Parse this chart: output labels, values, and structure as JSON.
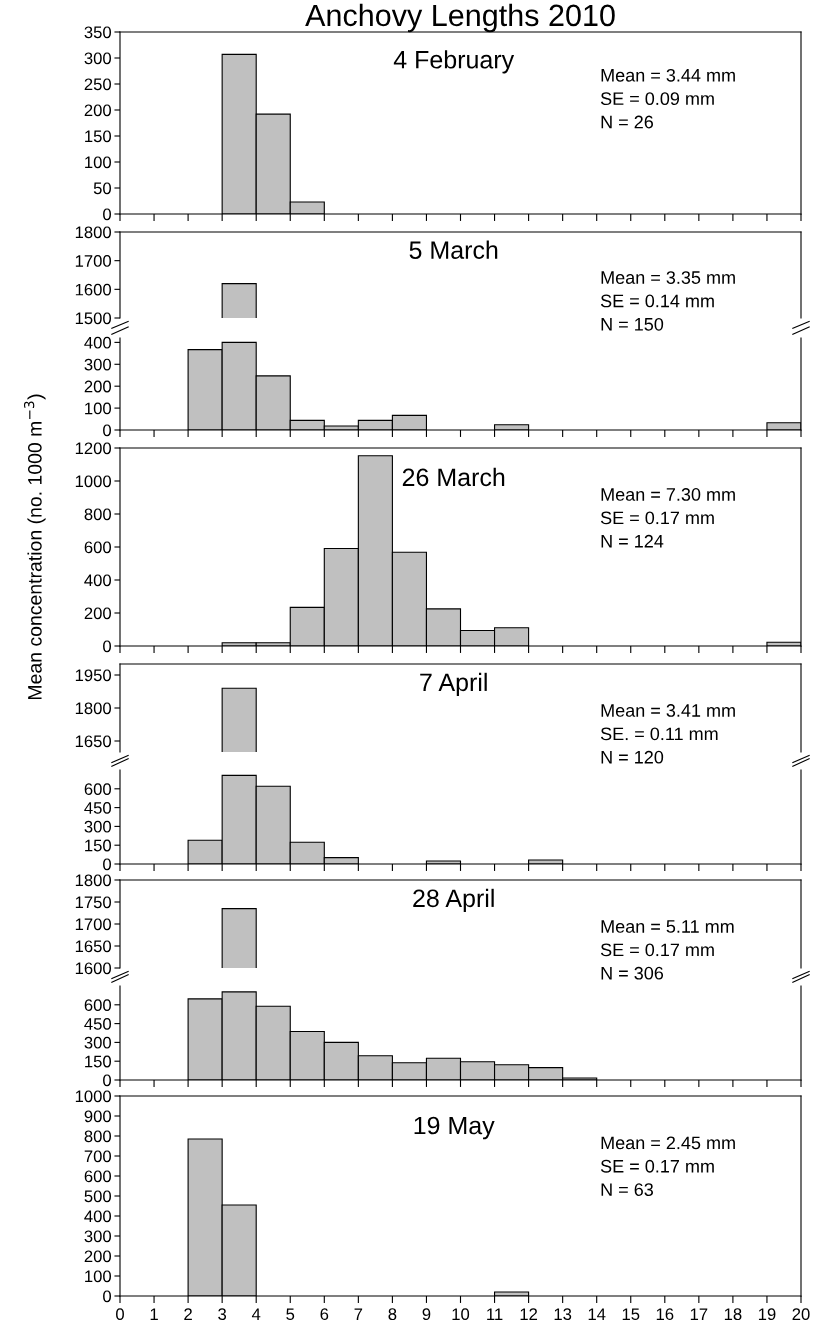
{
  "chart_data": [
    {
      "type": "histogram",
      "title": "Anchovy Lengths 2010",
      "bins": [
        0,
        1,
        2,
        3,
        4,
        5,
        6,
        7,
        8,
        9,
        10,
        11,
        12,
        13,
        14,
        15,
        16,
        17,
        18,
        19,
        20
      ],
      "values": [
        null,
        null,
        null,
        307,
        192,
        23,
        null,
        null,
        null,
        null,
        null,
        null,
        null,
        null,
        null,
        null,
        null,
        null,
        null,
        null
      ],
      "color": "#c0c0c0",
      "xlim": [
        0,
        20
      ],
      "xticks": [
        0,
        1,
        2,
        3,
        4,
        5,
        6,
        7,
        8,
        9,
        10,
        11,
        12,
        13,
        14,
        15,
        16,
        17,
        18,
        19,
        20
      ],
      "ylim": [
        0,
        350
      ],
      "yticks": [
        0,
        50,
        100,
        150,
        200,
        250,
        300,
        350
      ],
      "tick_labels": "y",
      "annotations": [
        "4 February",
        "Mean = 3.44 mm\nSE = 0.09 mm\nN = 26"
      ]
    },
    {
      "type": "histogram",
      "bins": [
        0,
        1,
        2,
        3,
        4,
        5,
        6,
        7,
        8,
        9,
        10,
        11,
        12,
        13,
        14,
        15,
        16,
        17,
        18,
        19,
        20
      ],
      "values": [
        null,
        null,
        null,
        1620,
        null,
        null,
        null,
        null,
        null,
        null,
        null,
        null,
        null,
        null,
        null,
        null,
        null,
        null,
        null,
        null
      ],
      "color": "#c0c0c0",
      "xlim": [
        0,
        20
      ],
      "ylim": [
        1500,
        1800
      ],
      "yticks": [
        1500,
        1600,
        1700,
        1800
      ],
      "tick_labels": "y",
      "annotations": [
        "5 March",
        "Mean = 3.35 mm\nSE = 0.14 mm\nN = 150"
      ]
    },
    {
      "type": "histogram",
      "bins": [
        0,
        1,
        2,
        3,
        4,
        5,
        6,
        7,
        8,
        9,
        10,
        11,
        12,
        13,
        14,
        15,
        16,
        17,
        18,
        19,
        20
      ],
      "values": [
        null,
        null,
        367,
        400,
        247,
        44,
        18,
        44,
        67,
        null,
        null,
        24,
        null,
        null,
        null,
        null,
        null,
        null,
        null,
        33
      ],
      "color": "#c0c0c0",
      "xlim": [
        0,
        20
      ],
      "xticks": [
        0,
        1,
        2,
        3,
        4,
        5,
        6,
        7,
        8,
        9,
        10,
        11,
        12,
        13,
        14,
        15,
        16,
        17,
        18,
        19,
        20
      ],
      "ylim": [
        0,
        420
      ],
      "yticks": [
        0,
        100,
        200,
        300,
        400
      ],
      "tick_labels": "y"
    },
    {
      "type": "histogram",
      "bins": [
        0,
        1,
        2,
        3,
        4,
        5,
        6,
        7,
        8,
        9,
        10,
        11,
        12,
        13,
        14,
        15,
        16,
        17,
        18,
        19,
        20
      ],
      "values": [
        null,
        null,
        null,
        20,
        20,
        234,
        591,
        1153,
        568,
        225,
        94,
        111,
        null,
        null,
        null,
        null,
        null,
        null,
        null,
        23
      ],
      "ylabel": "Mean concentration (no. 1000 m$^{−3}$)",
      "color": "#c0c0c0",
      "xlim": [
        0,
        20
      ],
      "xticks": [
        0,
        1,
        2,
        3,
        4,
        5,
        6,
        7,
        8,
        9,
        10,
        11,
        12,
        13,
        14,
        15,
        16,
        17,
        18,
        19,
        20
      ],
      "ylim": [
        0,
        1200
      ],
      "yticks": [
        0,
        200,
        400,
        600,
        800,
        1000,
        1200
      ],
      "tick_labels": "y",
      "annotations": [
        "26 March",
        "Mean = 7.30 mm\nSE = 0.17 mm\nN = 124"
      ]
    },
    {
      "type": "histogram",
      "bins": [
        0,
        1,
        2,
        3,
        4,
        5,
        6,
        7,
        8,
        9,
        10,
        11,
        12,
        13,
        14,
        15,
        16,
        17,
        18,
        19,
        20
      ],
      "values": [
        null,
        null,
        null,
        1890,
        null,
        null,
        null,
        null,
        null,
        null,
        null,
        null,
        null,
        null,
        null,
        null,
        null,
        null,
        null,
        null
      ],
      "color": "#c0c0c0",
      "xlim": [
        0,
        20
      ],
      "ylim": [
        1600,
        2000
      ],
      "yticks": [
        1650,
        1800,
        1950
      ],
      "tick_labels": "y",
      "annotations": [
        "7 April",
        "Mean = 3.41 mm\nSE. = 0.11 mm\nN = 120"
      ]
    },
    {
      "type": "histogram",
      "bins": [
        0,
        1,
        2,
        3,
        4,
        5,
        6,
        7,
        8,
        9,
        10,
        11,
        12,
        13,
        14,
        15,
        16,
        17,
        18,
        19,
        20
      ],
      "values": [
        null,
        null,
        189,
        707,
        620,
        174,
        51,
        null,
        null,
        24,
        null,
        null,
        32,
        null,
        null,
        null,
        null,
        null,
        null,
        null
      ],
      "color": "#c0c0c0",
      "xlim": [
        0,
        20
      ],
      "xticks": [
        0,
        1,
        2,
        3,
        4,
        5,
        6,
        7,
        8,
        9,
        10,
        11,
        12,
        13,
        14,
        15,
        16,
        17,
        18,
        19,
        20
      ],
      "ylim": [
        0,
        750
      ],
      "yticks": [
        0,
        150,
        300,
        450,
        600
      ],
      "tick_labels": "y"
    },
    {
      "type": "histogram",
      "bins": [
        0,
        1,
        2,
        3,
        4,
        5,
        6,
        7,
        8,
        9,
        10,
        11,
        12,
        13,
        14,
        15,
        16,
        17,
        18,
        19,
        20
      ],
      "values": [
        null,
        null,
        null,
        1735,
        null,
        null,
        null,
        null,
        null,
        null,
        null,
        null,
        null,
        null,
        null,
        null,
        null,
        null,
        null,
        null
      ],
      "color": "#c0c0c0",
      "xlim": [
        0,
        20
      ],
      "ylim": [
        1600,
        1800
      ],
      "yticks": [
        1600,
        1650,
        1700,
        1750,
        1800
      ],
      "tick_labels": "y",
      "annotations": [
        "28 April",
        "Mean = 5.11 mm\nSE = 0.17 mm\nN = 306"
      ]
    },
    {
      "type": "histogram",
      "bins": [
        0,
        1,
        2,
        3,
        4,
        5,
        6,
        7,
        8,
        9,
        10,
        11,
        12,
        13,
        14,
        15,
        16,
        17,
        18,
        19,
        20
      ],
      "values": [
        null,
        null,
        647,
        703,
        588,
        387,
        300,
        193,
        138,
        174,
        146,
        122,
        99,
        16,
        null,
        null,
        null,
        null,
        null,
        null
      ],
      "color": "#c0c0c0",
      "xlim": [
        0,
        20
      ],
      "xticks": [
        0,
        1,
        2,
        3,
        4,
        5,
        6,
        7,
        8,
        9,
        10,
        11,
        12,
        13,
        14,
        15,
        16,
        17,
        18,
        19,
        20
      ],
      "ylim": [
        0,
        750
      ],
      "yticks": [
        0,
        150,
        300,
        450,
        600
      ],
      "tick_labels": "y"
    },
    {
      "type": "histogram",
      "bins": [
        0,
        1,
        2,
        3,
        4,
        5,
        6,
        7,
        8,
        9,
        10,
        11,
        12,
        13,
        14,
        15,
        16,
        17,
        18,
        19,
        20
      ],
      "values": [
        null,
        null,
        785,
        455,
        null,
        null,
        null,
        null,
        null,
        null,
        null,
        20,
        null,
        null,
        null,
        null,
        null,
        null,
        null,
        null
      ],
      "color": "#c0c0c0",
      "xlim": [
        0,
        20
      ],
      "xticks": [
        0,
        1,
        2,
        3,
        4,
        5,
        6,
        7,
        8,
        9,
        10,
        11,
        12,
        13,
        14,
        15,
        16,
        17,
        18,
        19,
        20
      ],
      "ylim": [
        0,
        1000
      ],
      "yticks": [
        0,
        100,
        200,
        300,
        400,
        500,
        600,
        700,
        800,
        900,
        1000
      ],
      "annotations": [
        "19 May",
        "Mean = 2.45 mm\nSE = 0.17 mm\nN = 63"
      ]
    }
  ]
}
